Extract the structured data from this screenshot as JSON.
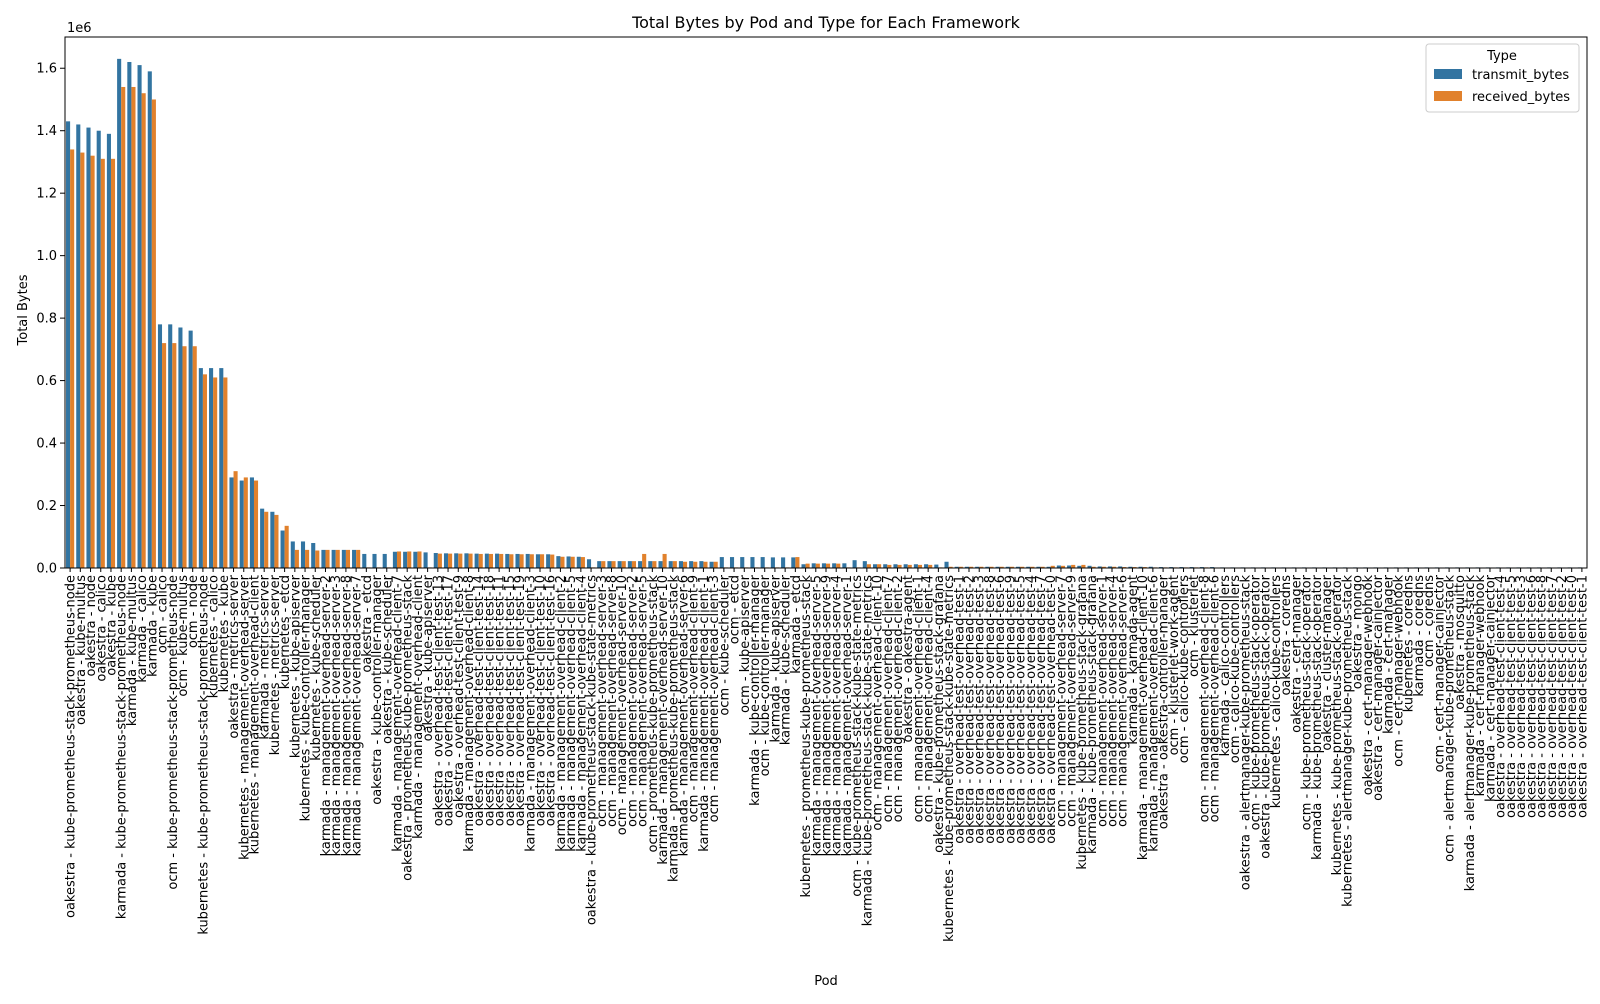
{
  "chart_data": {
    "type": "bar",
    "title": "Total Bytes by Pod and Type for Each Framework",
    "xlabel": "Pod",
    "ylabel": "Total Bytes",
    "y_offset_label": "1e6",
    "ylim": [
      0,
      1.7
    ],
    "y_ticks": [
      0.0,
      0.2,
      0.4,
      0.6,
      0.8,
      1.0,
      1.2,
      1.4,
      1.6
    ],
    "y_tick_labels": [
      "0.0",
      "0.2",
      "0.4",
      "0.6",
      "0.8",
      "1.0",
      "1.2",
      "1.4",
      "1.6"
    ],
    "grid": false,
    "legend": {
      "title": "Type",
      "placement": "top-right"
    },
    "colors": {
      "transmit_bytes": "#3274a1",
      "received_bytes": "#e1812c"
    },
    "categories": [
      "oakestra - kube-prometheus-stack-prometheus-node",
      "oakestra - kube-multus",
      "oakestra - node",
      "oakestra - calico",
      "oakestra - kube",
      "karmada - kube-prometheus-stack-prometheus-node",
      "karmada - kube-multus",
      "karmada - calico",
      "karmada - kube",
      "ocm - calico",
      "ocm - kube-prometheus-stack-prometheus-node",
      "ocm - kube-multus",
      "ocm - node",
      "kubernetes - kube-prometheus-stack-prometheus-node",
      "kubernetes - calico",
      "kubernetes - kube",
      "oakestra - metrics-server",
      "kubernetes - management-overhead-server",
      "kubernetes - management-overhead-client",
      "karmada - metrics-server",
      "kubernetes - metrics-server",
      "kubernetes - etcd",
      "kubernetes - kube-apiserver",
      "kubernetes - kube-controller-manager",
      "kubernetes - kube-scheduler",
      "karmada - management-overhead-server-2",
      "karmada - management-overhead-server-3",
      "karmada - management-overhead-server-8",
      "karmada - management-overhead-server-7",
      "oakestra - etcd",
      "oakestra - kube-controller-manager",
      "oakestra - kube-scheduler",
      "karmada - management-overhead-client-7",
      "oakestra - prometheus-kube-prometheus-stack",
      "karmada - management-overhead-client",
      "oakestra - kube-apiserver",
      "oakestra - overhead-test-client-test-13",
      "oakestra - overhead-test-client-test-17",
      "oakestra - overhead-test-client-test-9",
      "karmada - management-overhead-client-8",
      "oakestra - overhead-test-client-test-14",
      "oakestra - overhead-test-client-test-18",
      "oakestra - overhead-test-client-test-11",
      "oakestra - overhead-test-client-test-15",
      "oakestra - overhead-test-client-test-19",
      "karmada - management-overhead-client-3",
      "oakestra - overhead-test-client-test-10",
      "oakestra - overhead-test-client-test-16",
      "karmada - management-overhead-client-2",
      "karmada - management-overhead-client-5",
      "karmada - management-overhead-client-4",
      "oakestra - kube-prometheus-stack-kube-state-metrics",
      "ocm - management-overhead-server-3",
      "ocm - management-overhead-server-8",
      "ocm - management-overhead-server-10",
      "ocm - management-overhead-server-2",
      "ocm - management-overhead-server-5",
      "ocm - prometheus-kube-prometheus-stack",
      "karmada - management-overhead-server-10",
      "karmada - prometheus-kube-prometheus-stack",
      "karmada - management-overhead-server-6",
      "ocm - management-overhead-client-9",
      "karmada - management-overhead-client-1",
      "ocm - management-overhead-client-3",
      "ocm - kube-scheduler",
      "ocm - etcd",
      "ocm - kube-apiserver",
      "karmada - kube-controller-manager",
      "ocm - kube-controller-manager",
      "karmada - kube-apiserver",
      "karmada - kube-scheduler",
      "karmada - etcd",
      "kubernetes - prometheus-kube-prometheus-stack",
      "karmada - management-overhead-server-5",
      "karmada - management-overhead-server-9",
      "karmada - management-overhead-server-4",
      "karmada - management-overhead-server-1",
      "ocm - kube-prometheus-stack-kube-state-metrics",
      "karmada - kube-prometheus-stack-kube-state-metrics",
      "ocm - management-overhead-client-10",
      "ocm - management-overhead-client-7",
      "ocm - management-overhead-client-2",
      "oakestra - oakestra-agent",
      "ocm - management-overhead-client-1",
      "ocm - management-overhead-client-4",
      "oakestra - kube-prometheus-stack-grafana",
      "kubernetes - kube-prometheus-stack-kube-state-metrics",
      "oakestra - overhead-test-overhead-test-1",
      "oakestra - overhead-test-overhead-test-2",
      "oakestra - overhead-test-overhead-test-3",
      "oakestra - overhead-test-overhead-test-8",
      "oakestra - overhead-test-overhead-test-6",
      "oakestra - overhead-test-overhead-test-9",
      "oakestra - overhead-test-overhead-test-5",
      "oakestra - overhead-test-overhead-test-4",
      "oakestra - overhead-test-overhead-test-7",
      "oakestra - overhead-test-overhead-test-0",
      "ocm - management-overhead-server-7",
      "ocm - management-overhead-server-9",
      "kubernetes - kube-prometheus-stack-grafana",
      "karmada - kube-prometheus-stack-grafana",
      "ocm - management-overhead-server-1",
      "ocm - management-overhead-server-4",
      "ocm - management-overhead-server-6",
      "karmada - karmada-agent",
      "karmada - management-overhead-client-10",
      "karmada - management-overhead-client-6",
      "oakestra - oakestra-controller-manager",
      "ocm - klusterlet-work-agent",
      "ocm - calico-kube-controllers",
      "ocm - klusterlet",
      "ocm - management-overhead-client-8",
      "ocm - management-overhead-client-6",
      "karmada - calico-controllers",
      "ocm - calico-kube-controllers",
      "oakestra - alertmanager-kube-prometheus-stack",
      "ocm - kube-prometheus-stack-operator",
      "oakestra - kube-prometheus-stack-operator",
      "kubernetes - calico-kube-controllers",
      "oakestra - coredns",
      "oakestra - cert-manager",
      "ocm - kube-prometheus-stack-operator",
      "karmada - kube-prometheus-stack-operator",
      "oakestra - cluster-manager",
      "kubernetes - kube-prometheus-stack-operator",
      "kubernetes - alertmanager-kube-prometheus-stack",
      "oakestra - mongo",
      "oakestra - cert-manager-webhook",
      "oakestra - cert-manager-cainjector",
      "karmada - cert-manager",
      "ocm - cert-manager-webhook",
      "kubernetes - coredns",
      "karmada - coredns",
      "ocm - coredns",
      "ocm - cert-manager-cainjector",
      "ocm - alertmanager-kube-prometheus-stack",
      "oakestra - mosquitto",
      "karmada - alertmanager-kube-prometheus-stack",
      "karmada - cert-manager-webhook",
      "karmada - cert-manager-cainjector",
      "oakestra - overhead-test-client-test-4",
      "oakestra - overhead-test-client-test-5",
      "oakestra - overhead-test-client-test-3",
      "oakestra - overhead-test-client-test-6",
      "oakestra - overhead-test-client-test-8",
      "oakestra - overhead-test-client-test-7",
      "oakestra - overhead-test-client-test-2",
      "oakestra - overhead-test-client-test-0",
      "oakestra - overhead-test-client-test-1"
    ],
    "series": [
      {
        "name": "transmit_bytes",
        "values": [
          1.43,
          1.42,
          1.41,
          1.4,
          1.39,
          1.63,
          1.62,
          1.61,
          1.59,
          0.78,
          0.78,
          0.77,
          0.76,
          0.64,
          0.64,
          0.64,
          0.29,
          0.28,
          0.29,
          0.19,
          0.18,
          0.12,
          0.085,
          0.085,
          0.08,
          0.058,
          0.058,
          0.058,
          0.058,
          0.045,
          0.045,
          0.045,
          0.052,
          0.052,
          0.052,
          0.05,
          0.048,
          0.047,
          0.047,
          0.047,
          0.046,
          0.046,
          0.046,
          0.045,
          0.045,
          0.045,
          0.044,
          0.044,
          0.038,
          0.037,
          0.036,
          0.028,
          0.022,
          0.022,
          0.022,
          0.022,
          0.022,
          0.022,
          0.022,
          0.022,
          0.022,
          0.022,
          0.022,
          0.02,
          0.035,
          0.035,
          0.035,
          0.035,
          0.035,
          0.034,
          0.034,
          0.034,
          0.012,
          0.015,
          0.015,
          0.015,
          0.015,
          0.025,
          0.022,
          0.012,
          0.012,
          0.012,
          0.012,
          0.012,
          0.012,
          0.011,
          0.02,
          0.004,
          0.004,
          0.004,
          0.004,
          0.004,
          0.004,
          0.004,
          0.004,
          0.004,
          0.004,
          0.008,
          0.008,
          0.007,
          0.007,
          0.005,
          0.005,
          0.005,
          0.004,
          0.004,
          0.004,
          0.003,
          0.003,
          0.003,
          0.003,
          0.003,
          0.003,
          0.002,
          0.002,
          0.002,
          0.002,
          0.002,
          0.002,
          0.002,
          0.002,
          0.002,
          0.002,
          0.002,
          0.002,
          0.002,
          0.002,
          0.002,
          0.002,
          0.002,
          0.002,
          0.002,
          0.002,
          0.002,
          0.002,
          0.002,
          0.002,
          0.002,
          0.002,
          0.002,
          0.002,
          0.002,
          0.002,
          0.002,
          0.002,
          0.002,
          0.002,
          0.002,
          0.002
        ]
      },
      {
        "name": "received_bytes",
        "values": [
          1.34,
          1.33,
          1.32,
          1.31,
          1.31,
          1.54,
          1.54,
          1.52,
          1.5,
          0.72,
          0.72,
          0.71,
          0.71,
          0.62,
          0.61,
          0.61,
          0.31,
          0.29,
          0.28,
          0.18,
          0.17,
          0.135,
          0.058,
          0.058,
          0.056,
          0.058,
          0.058,
          0.058,
          0.058,
          0.002,
          0.002,
          0.002,
          0.053,
          0.053,
          0.053,
          0.002,
          0.046,
          0.046,
          0.046,
          0.046,
          0.045,
          0.045,
          0.045,
          0.044,
          0.044,
          0.044,
          0.044,
          0.043,
          0.036,
          0.036,
          0.035,
          0.002,
          0.022,
          0.022,
          0.022,
          0.022,
          0.045,
          0.022,
          0.045,
          0.022,
          0.02,
          0.02,
          0.02,
          0.02,
          0.002,
          0.002,
          0.002,
          0.002,
          0.002,
          0.002,
          0.002,
          0.035,
          0.014,
          0.014,
          0.014,
          0.014,
          0.002,
          0.002,
          0.012,
          0.012,
          0.01,
          0.01,
          0.01,
          0.01,
          0.01,
          0.002,
          0.004,
          0.004,
          0.004,
          0.004,
          0.004,
          0.004,
          0.004,
          0.004,
          0.004,
          0.004,
          0.007,
          0.007,
          0.01,
          0.01,
          0.004,
          0.004,
          0.004,
          0.003,
          0.003,
          0.003,
          0.002,
          0.002,
          0.002,
          0.002,
          0.002,
          0.002,
          0.001,
          0.001,
          0.001,
          0.001,
          0.001,
          0.001,
          0.001,
          0.001,
          0.001,
          0.001,
          0.001,
          0.001,
          0.001,
          0.001,
          0.001,
          0.001,
          0.001,
          0.001,
          0.001,
          0.001,
          0.001,
          0.001,
          0.001,
          0.001,
          0.001,
          0.001,
          0.001,
          0.001,
          0.001,
          0.001,
          0.001,
          0.001,
          0.001,
          0.001,
          0.001,
          0.001,
          0.001
        ]
      }
    ]
  }
}
